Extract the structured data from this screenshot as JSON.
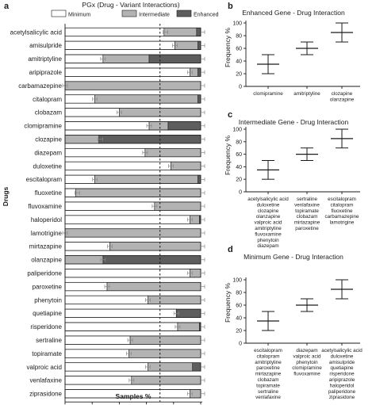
{
  "panel_letters": {
    "a": "a",
    "b": "b",
    "c": "c",
    "d": "d"
  },
  "colors": {
    "minimum": "#ffffff",
    "intermediate": "#b3b3b3",
    "enhanced": "#5e5e5e",
    "stroke": "#1a1a1a",
    "error": "#888888"
  },
  "chart_data": [
    {
      "type": "bar",
      "orientation": "horizontal",
      "stacked": true,
      "title": "PGx (Drug - Variant Interactions)",
      "xlabel": "Samples %",
      "ylabel": "Drugs",
      "xlim": [
        0,
        100
      ],
      "xticks": [
        "0",
        "20",
        "40",
        "60",
        "80",
        "100"
      ],
      "reference_line_x": 70,
      "legend_position": "top",
      "categories": [
        "acetylsalicylic acid",
        "amisulpride",
        "amitriptyline",
        "aripiprazole",
        "carbamazepine",
        "citalopram",
        "clobazam",
        "clomipramine",
        "clozapine",
        "diazepam",
        "duloxetine",
        "escitalopram",
        "fluoxetine",
        "fluvoxamine",
        "haloperidol",
        "lamotrigine",
        "mirtazapine",
        "olanzapine",
        "paliperidone",
        "paroxetine",
        "phenytoin",
        "quetiapine",
        "risperidone",
        "sertraline",
        "topiramate",
        "valproic acid",
        "venlafaxine",
        "ziprasidone"
      ],
      "series": [
        {
          "name": "Minimum",
          "values": [
            73,
            81,
            28,
            92,
            0,
            22,
            40,
            62,
            0,
            59,
            78,
            22,
            8,
            66,
            92,
            0,
            33,
            0,
            92,
            31,
            61,
            82,
            83,
            48,
            47,
            61,
            49,
            92
          ]
        },
        {
          "name": "Intermediate",
          "values": [
            24,
            17,
            34,
            6,
            100,
            76,
            60,
            14,
            25,
            41,
            22,
            76,
            92,
            34,
            7,
            100,
            67,
            28,
            8,
            69,
            39,
            0,
            16,
            52,
            53,
            33,
            51,
            8
          ]
        },
        {
          "name": "Enhanced",
          "values": [
            3,
            2,
            38,
            2,
            0,
            2,
            0,
            24,
            75,
            0,
            0,
            2,
            0,
            0,
            1,
            0,
            0,
            72,
            0,
            0,
            0,
            18,
            1,
            0,
            0,
            6,
            0,
            0
          ]
        }
      ],
      "error_bar_x": [
        74,
        81,
        28,
        92,
        0,
        22,
        40,
        62,
        26,
        59,
        78,
        22,
        9,
        66,
        92,
        0,
        33,
        28,
        92,
        31,
        61,
        82,
        83,
        48,
        47,
        61,
        49,
        92
      ]
    },
    {
      "type": "scatter",
      "title": "Enhanced Gene - Drug Interaction",
      "ylabel": "Frequency %",
      "ylim": [
        0,
        100
      ],
      "yticks": [
        "0",
        "20",
        "40",
        "60",
        "80",
        "100"
      ],
      "categories": [
        [
          "clomipramine"
        ],
        [
          "amitriptyline"
        ],
        [
          "clozapine",
          "olanzapine"
        ]
      ],
      "mean": [
        35,
        60,
        85
      ],
      "error": [
        15,
        10,
        15
      ]
    },
    {
      "type": "scatter",
      "title": "Intermediate Gene - Drug Interaction",
      "ylabel": "Frequency %",
      "ylim": [
        0,
        100
      ],
      "yticks": [
        "0",
        "20",
        "40",
        "60",
        "80",
        "100"
      ],
      "categories": [
        [
          "acetylsalicylic acid",
          "duloxetine",
          "clozapine",
          "olanzapine",
          "valproic acid",
          "amitriptyline",
          "fluvoxamine",
          "phenytoin",
          "diazepam"
        ],
        [
          "sertraline",
          "venlafaxine",
          "topiramate",
          "clobazam",
          "mirtazapine",
          "paroxetine"
        ],
        [
          "escitalopram",
          "citalopram",
          "fluoxetine",
          "carbamazepine",
          "lamotrigine"
        ]
      ],
      "mean": [
        35,
        60,
        85
      ],
      "error": [
        15,
        10,
        15
      ]
    },
    {
      "type": "scatter",
      "title": "Minimum Gene - Drug Interaction",
      "ylabel": "Frequency %",
      "ylim": [
        0,
        100
      ],
      "yticks": [
        "0",
        "20",
        "40",
        "60",
        "80",
        "100"
      ],
      "categories": [
        [
          "escitalopram",
          "citalopram",
          "amitriptyline",
          "paroxetine",
          "mirtazapine",
          "clobazam",
          "topiramate",
          "sertraline",
          "venlafaxine"
        ],
        [
          "diazepam",
          "valproic acid",
          "phenytoin",
          "clomipramine",
          "fluvoxamine"
        ],
        [
          "acetylsalicylic acid",
          "duloxetine",
          "amisulpride",
          "quetiapine",
          "risperidone",
          "aripiprazole",
          "haloperidol",
          "paliperidone",
          "ziprasidone"
        ]
      ],
      "mean": [
        35,
        60,
        85
      ],
      "error": [
        15,
        10,
        15
      ]
    }
  ]
}
